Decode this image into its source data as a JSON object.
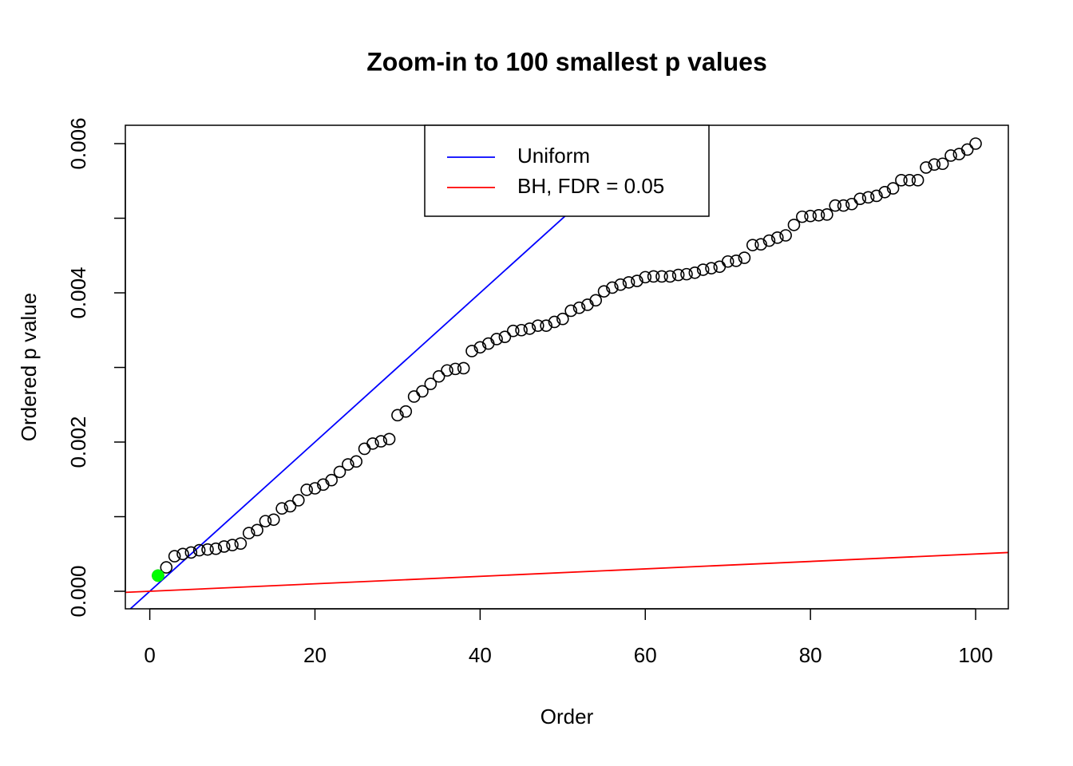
{
  "chart_data": {
    "type": "scatter",
    "title": "Zoom-in to 100 smallest p values",
    "x_label": "Order",
    "y_label": "Ordered p value",
    "xlim": [
      -2.96,
      103.96
    ],
    "ylim": [
      -0.000235,
      0.006246
    ],
    "xticks": [
      0,
      20,
      40,
      60,
      80,
      100
    ],
    "yticks": [
      {
        "value": 0,
        "label": "0.000"
      },
      {
        "value": 0.002,
        "label": "0.002"
      },
      {
        "value": 0.004,
        "label": "0.004"
      },
      {
        "value": 0.006,
        "label": "0.006"
      }
    ],
    "yminor_ticks": [
      0.001,
      0.003,
      0.005
    ],
    "legend": "top",
    "series": [
      {
        "color": "#000000",
        "filled": false,
        "x": [
          1,
          2,
          3,
          4,
          5,
          6,
          7,
          8,
          9,
          10,
          11,
          12,
          13,
          14,
          15,
          16,
          17,
          18,
          19,
          20,
          21,
          22,
          23,
          24,
          25,
          26,
          27,
          28,
          29,
          30,
          31,
          32,
          33,
          34,
          35,
          36,
          37,
          38,
          39,
          40,
          41,
          42,
          43,
          44,
          45,
          46,
          47,
          48,
          49,
          50,
          51,
          52,
          53,
          54,
          55,
          56,
          57,
          58,
          59,
          60,
          61,
          62,
          63,
          64,
          65,
          66,
          67,
          68,
          69,
          70,
          71,
          72,
          73,
          74,
          75,
          76,
          77,
          78,
          79,
          80,
          81,
          82,
          83,
          84,
          85,
          86,
          87,
          88,
          89,
          90,
          91,
          92,
          93,
          94,
          95,
          96,
          97,
          98,
          99,
          100
        ],
        "values": [
          0.00021,
          0.00032,
          0.00047,
          0.0005,
          0.00052,
          0.00055,
          0.00056,
          0.00057,
          0.0006,
          0.00062,
          0.00064,
          0.00078,
          0.00082,
          0.00094,
          0.00096,
          0.00111,
          0.00114,
          0.00122,
          0.00136,
          0.00138,
          0.00143,
          0.00149,
          0.0016,
          0.0017,
          0.00174,
          0.00191,
          0.00198,
          0.00201,
          0.00204,
          0.00236,
          0.00241,
          0.00261,
          0.00268,
          0.00278,
          0.00288,
          0.00296,
          0.00298,
          0.00299,
          0.00322,
          0.00327,
          0.00332,
          0.00338,
          0.00341,
          0.00349,
          0.0035,
          0.00352,
          0.00356,
          0.00356,
          0.00361,
          0.00365,
          0.00376,
          0.0038,
          0.00384,
          0.0039,
          0.00402,
          0.00407,
          0.00411,
          0.00414,
          0.00416,
          0.00421,
          0.00422,
          0.00422,
          0.00422,
          0.00424,
          0.00425,
          0.00427,
          0.00431,
          0.00433,
          0.00435,
          0.00442,
          0.00443,
          0.00447,
          0.00464,
          0.00465,
          0.0047,
          0.00474,
          0.00477,
          0.00491,
          0.00502,
          0.00503,
          0.00504,
          0.00505,
          0.00517,
          0.00517,
          0.00519,
          0.00526,
          0.00528,
          0.0053,
          0.00535,
          0.0054,
          0.00551,
          0.00551,
          0.00551,
          0.00568,
          0.00572,
          0.00573,
          0.00584,
          0.00586,
          0.00592,
          0.006
        ]
      },
      {
        "color": "#00ff00",
        "filled": true,
        "x": [
          1
        ],
        "values": [
          0.00021
        ]
      }
    ],
    "lines": [
      {
        "name": "Uniform",
        "color": "#0000ff",
        "slope": 0.0001,
        "intercept": 0
      },
      {
        "name": "BH, FDR = 0.05",
        "color": "#ff0000",
        "slope": 5e-06,
        "intercept": 0
      }
    ]
  }
}
